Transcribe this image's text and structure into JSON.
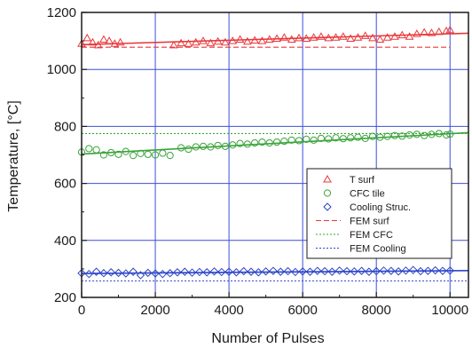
{
  "chart_data": {
    "type": "scatter",
    "title": "",
    "xlabel": "Number of Pulses",
    "ylabel": "Temperature, [°C]",
    "xlim": [
      0,
      10500
    ],
    "ylim": [
      200,
      1200
    ],
    "xticks": [
      0,
      2000,
      4000,
      6000,
      8000,
      10000
    ],
    "yticks": [
      200,
      400,
      600,
      800,
      1000,
      1200
    ],
    "grid": true,
    "legend_position": "lower-right",
    "series": [
      {
        "name": "T surf",
        "kind": "markers",
        "marker": "triangle",
        "color": "#e8383b",
        "x": [
          0,
          150,
          300,
          450,
          600,
          750,
          900,
          1050,
          2500,
          2700,
          2900,
          3100,
          3300,
          3500,
          3700,
          3900,
          4100,
          4300,
          4500,
          4700,
          4900,
          5100,
          5300,
          5500,
          5700,
          5900,
          6100,
          6300,
          6500,
          6700,
          6900,
          7100,
          7300,
          7500,
          7700,
          7900,
          8100,
          8300,
          8500,
          8700,
          8900,
          9100,
          9300,
          9500,
          9700,
          9900,
          10000
        ],
        "y": [
          1090,
          1110,
          1095,
          1085,
          1105,
          1100,
          1090,
          1095,
          1085,
          1092,
          1090,
          1095,
          1100,
          1092,
          1098,
          1095,
          1100,
          1105,
          1098,
          1102,
          1100,
          1105,
          1108,
          1112,
          1105,
          1110,
          1108,
          1112,
          1115,
          1110,
          1112,
          1115,
          1108,
          1112,
          1118,
          1110,
          1105,
          1112,
          1115,
          1120,
          1115,
          1125,
          1130,
          1128,
          1132,
          1135,
          1138
        ]
      },
      {
        "name": "CFC tile",
        "kind": "markers",
        "marker": "circle",
        "color": "#3aa43a",
        "x": [
          0,
          200,
          400,
          600,
          800,
          1000,
          1200,
          1400,
          1600,
          1800,
          2000,
          2200,
          2400,
          2700,
          2900,
          3100,
          3300,
          3500,
          3700,
          3900,
          4100,
          4300,
          4500,
          4700,
          4900,
          5100,
          5300,
          5500,
          5700,
          5900,
          6100,
          6300,
          6500,
          6700,
          6900,
          7100,
          7300,
          7500,
          7700,
          7900,
          8100,
          8300,
          8500,
          8700,
          8900,
          9100,
          9300,
          9500,
          9700,
          9900,
          10000
        ],
        "y": [
          710,
          722,
          718,
          700,
          708,
          702,
          712,
          698,
          705,
          702,
          700,
          706,
          698,
          725,
          720,
          728,
          730,
          728,
          733,
          730,
          735,
          740,
          738,
          742,
          745,
          742,
          745,
          748,
          752,
          750,
          755,
          752,
          758,
          756,
          760,
          757,
          760,
          762,
          758,
          765,
          762,
          765,
          768,
          766,
          770,
          772,
          768,
          772,
          775,
          770,
          773
        ]
      },
      {
        "name": "Cooling Struc.",
        "kind": "markers",
        "marker": "diamond",
        "color": "#2c45c8",
        "x": [
          0,
          200,
          400,
          600,
          800,
          1000,
          1200,
          1400,
          1600,
          1800,
          2000,
          2200,
          2400,
          2600,
          2800,
          3000,
          3200,
          3400,
          3600,
          3800,
          4000,
          4200,
          4400,
          4600,
          4800,
          5000,
          5200,
          5400,
          5600,
          5800,
          6000,
          6200,
          6400,
          6600,
          6800,
          7000,
          7200,
          7400,
          7600,
          7800,
          8000,
          8200,
          8400,
          8600,
          8800,
          9000,
          9200,
          9400,
          9600,
          9800,
          10000
        ],
        "y": [
          285,
          282,
          290,
          285,
          288,
          286,
          284,
          290,
          278,
          286,
          284,
          282,
          285,
          288,
          290,
          287,
          289,
          288,
          291,
          289,
          290,
          288,
          292,
          290,
          288,
          291,
          293,
          290,
          292,
          289,
          291,
          290,
          293,
          292,
          290,
          294,
          292,
          291,
          293,
          290,
          292,
          294,
          293,
          291,
          294,
          296,
          292,
          293,
          295,
          293,
          294
        ]
      },
      {
        "name": "",
        "kind": "fit",
        "color": "#e8383b",
        "x": [
          0,
          10500
        ],
        "y": [
          1087,
          1127
        ]
      },
      {
        "name": "",
        "kind": "fit",
        "color": "#3aa43a",
        "x": [
          0,
          10500
        ],
        "y": [
          703,
          778
        ]
      },
      {
        "name": "",
        "kind": "fit",
        "color": "#2c45c8",
        "x": [
          0,
          10500
        ],
        "y": [
          284,
          294
        ]
      },
      {
        "name": "FEM surf",
        "kind": "dashed",
        "color": "#e8383b",
        "x": [
          0,
          10000
        ],
        "y": [
          1078,
          1078
        ]
      },
      {
        "name": "FEM CFC",
        "kind": "dotted",
        "color": "#3aa43a",
        "x": [
          0,
          10500
        ],
        "y": [
          775,
          775
        ]
      },
      {
        "name": "FEM Cooling",
        "kind": "dotted",
        "color": "#2c45c8",
        "x": [
          0,
          10500
        ],
        "y": [
          258,
          258
        ]
      }
    ]
  }
}
